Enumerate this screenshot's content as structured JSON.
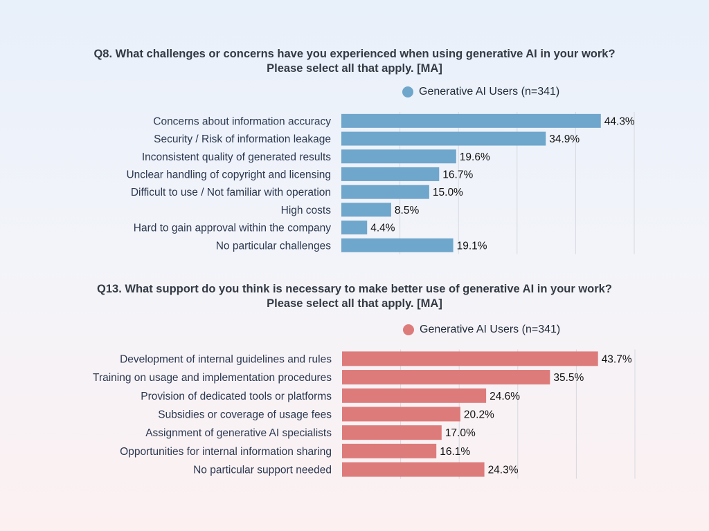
{
  "chart_data": [
    {
      "type": "bar",
      "orientation": "horizontal",
      "title": "Q8. What challenges or concerns have you experienced when using generative AI in your work?",
      "subtitle": "Please select all that apply. [MA]",
      "legend": "Generative AI Users (n=341)",
      "legend_position": "top-right",
      "color": "#6fa6cc",
      "grid": true,
      "xlim": [
        0,
        50
      ],
      "categories": [
        "Concerns about information accuracy",
        "Security / Risk of information leakage",
        "Inconsistent quality of generated results",
        "Unclear handling of copyright and licensing",
        "Difficult to use / Not familiar with operation",
        "High costs",
        "Hard to gain approval within the company",
        "No particular challenges"
      ],
      "values": [
        44.3,
        34.9,
        19.6,
        16.7,
        15.0,
        8.5,
        4.4,
        19.1
      ],
      "value_labels": [
        "44.3%",
        "34.9%",
        "19.6%",
        "16.7%",
        "15.0%",
        "8.5%",
        "4.4%",
        "19.1%"
      ]
    },
    {
      "type": "bar",
      "orientation": "horizontal",
      "title": "Q13. What support do you think is necessary to make better use of generative AI in your work?",
      "subtitle": "Please select all that apply. [MA]",
      "legend": "Generative AI Users (n=341)",
      "legend_position": "top-right",
      "color": "#dd7b7b",
      "grid": true,
      "xlim": [
        0,
        50
      ],
      "categories": [
        "Development of internal guidelines and rules",
        "Training on usage and implementation procedures",
        "Provision of dedicated tools or platforms",
        "Subsidies or coverage of usage fees",
        "Assignment of generative AI specialists",
        "Opportunities for internal information sharing",
        "No particular support needed"
      ],
      "values": [
        43.7,
        35.5,
        24.6,
        20.2,
        17.0,
        16.1,
        24.3
      ],
      "value_labels": [
        "43.7%",
        "35.5%",
        "24.6%",
        "20.2%",
        "17.0%",
        "16.1%",
        "24.3%"
      ]
    }
  ]
}
